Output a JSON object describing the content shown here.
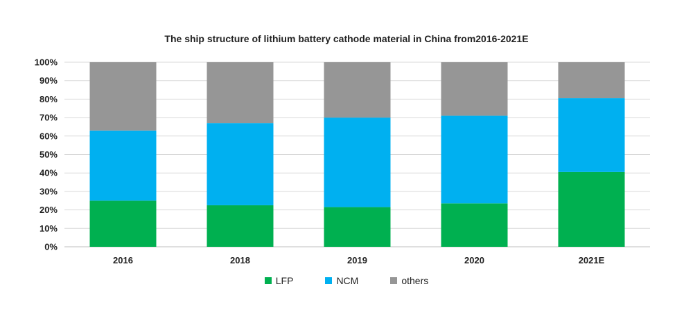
{
  "chart_data": {
    "type": "bar",
    "stacked": true,
    "title": "The ship structure of lithium battery cathode material in China from2016-2021E",
    "xlabel": "",
    "ylabel": "",
    "categories": [
      "2016",
      "2018",
      "2019",
      "2020",
      "2021E"
    ],
    "series": [
      {
        "name": "LFP",
        "color": "#00b050",
        "values": [
          25,
          22.5,
          21.5,
          23.5,
          40.5
        ]
      },
      {
        "name": "NCM",
        "color": "#00b0f0",
        "values": [
          38,
          44.5,
          48.5,
          47.5,
          40
        ]
      },
      {
        "name": "others",
        "color": "#969696",
        "values": [
          37,
          33,
          30,
          29,
          19.5
        ]
      }
    ],
    "ylim": [
      0,
      100
    ],
    "yticks": [
      "0%",
      "10%",
      "20%",
      "30%",
      "40%",
      "50%",
      "60%",
      "70%",
      "80%",
      "90%",
      "100%"
    ],
    "grid": true,
    "legend_position": "bottom"
  }
}
